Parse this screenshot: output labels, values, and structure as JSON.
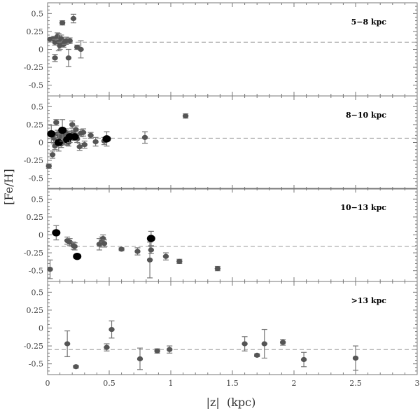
{
  "chart_data": {
    "type": "scatter",
    "xlabel": "|z|  (kpc)",
    "ylabel": "[Fe/H]",
    "xlim": [
      0,
      3
    ],
    "ylim": [
      -0.65,
      0.65
    ],
    "xticks": [
      0,
      0.5,
      1,
      1.5,
      2,
      2.5,
      3
    ],
    "xtick_labels": [
      "0",
      "0.5",
      "1",
      "1.5",
      "2",
      "2.5",
      "3"
    ],
    "yticks": [
      0.5,
      0.25,
      0,
      -0.25,
      -0.5
    ],
    "ytick_labels": [
      "0.5",
      "0.25",
      "0",
      "-0.25",
      "-0.5"
    ],
    "grid": false,
    "marker_colors": {
      "small": "#555555",
      "large": "#000000"
    },
    "panels": [
      {
        "label": "5−8 kpc",
        "ref_line": 0.1,
        "points": [
          {
            "x": 0.02,
            "y": 0.14,
            "err": 0.0,
            "size": "small"
          },
          {
            "x": 0.05,
            "y": 0.15,
            "err": 0.03,
            "size": "small"
          },
          {
            "x": 0.06,
            "y": 0.1,
            "err": 0.04,
            "size": "small"
          },
          {
            "x": 0.06,
            "y": -0.12,
            "err": 0.05,
            "size": "small"
          },
          {
            "x": 0.08,
            "y": 0.18,
            "err": 0.05,
            "size": "small"
          },
          {
            "x": 0.09,
            "y": 0.1,
            "err": 0.12,
            "size": "small"
          },
          {
            "x": 0.1,
            "y": 0.05,
            "err": 0.05,
            "size": "small"
          },
          {
            "x": 0.11,
            "y": 0.15,
            "err": 0.05,
            "size": "small"
          },
          {
            "x": 0.12,
            "y": 0.37,
            "err": 0.03,
            "size": "small"
          },
          {
            "x": 0.13,
            "y": 0.07,
            "err": 0.04,
            "size": "small"
          },
          {
            "x": 0.14,
            "y": 0.1,
            "err": 0.03,
            "size": "small"
          },
          {
            "x": 0.15,
            "y": 0.12,
            "err": 0.05,
            "size": "small"
          },
          {
            "x": 0.17,
            "y": -0.12,
            "err": 0.12,
            "size": "small"
          },
          {
            "x": 0.18,
            "y": 0.12,
            "err": 0.04,
            "size": "small"
          },
          {
            "x": 0.21,
            "y": 0.43,
            "err": 0.06,
            "size": "small"
          },
          {
            "x": 0.24,
            "y": 0.03,
            "err": 0.03,
            "size": "small"
          },
          {
            "x": 0.27,
            "y": 0.0,
            "err": 0.12,
            "size": "small"
          }
        ]
      },
      {
        "label": "8−10 kpc",
        "ref_line": 0.06,
        "points": [
          {
            "x": 0.01,
            "y": -0.33,
            "err": 0.03,
            "size": "small"
          },
          {
            "x": 0.03,
            "y": 0.12,
            "err": 0.12,
            "size": "large"
          },
          {
            "x": 0.04,
            "y": -0.17,
            "err": 0.05,
            "size": "small"
          },
          {
            "x": 0.05,
            "y": 0.06,
            "err": 0.08,
            "size": "small"
          },
          {
            "x": 0.06,
            "y": -0.05,
            "err": 0.05,
            "size": "small"
          },
          {
            "x": 0.07,
            "y": 0.28,
            "err": 0.04,
            "size": "small"
          },
          {
            "x": 0.08,
            "y": 0.12,
            "err": 0.05,
            "size": "small"
          },
          {
            "x": 0.09,
            "y": 0.0,
            "err": 0.12,
            "size": "large"
          },
          {
            "x": 0.1,
            "y": 0.08,
            "err": 0.05,
            "size": "small"
          },
          {
            "x": 0.11,
            "y": -0.02,
            "err": 0.05,
            "size": "small"
          },
          {
            "x": 0.12,
            "y": 0.17,
            "err": 0.15,
            "size": "large"
          },
          {
            "x": 0.13,
            "y": 0.1,
            "err": 0.05,
            "size": "small"
          },
          {
            "x": 0.14,
            "y": 0.02,
            "err": 0.05,
            "size": "small"
          },
          {
            "x": 0.15,
            "y": 0.14,
            "err": 0.05,
            "size": "small"
          },
          {
            "x": 0.16,
            "y": 0.04,
            "err": 0.08,
            "size": "large"
          },
          {
            "x": 0.17,
            "y": 0.0,
            "err": 0.05,
            "size": "small"
          },
          {
            "x": 0.18,
            "y": 0.08,
            "err": 0.08,
            "size": "large"
          },
          {
            "x": 0.19,
            "y": 0.1,
            "err": 0.05,
            "size": "small"
          },
          {
            "x": 0.2,
            "y": 0.25,
            "err": 0.05,
            "size": "small"
          },
          {
            "x": 0.21,
            "y": 0.12,
            "err": 0.05,
            "size": "small"
          },
          {
            "x": 0.22,
            "y": 0.08,
            "err": 0.05,
            "size": "large"
          },
          {
            "x": 0.23,
            "y": 0.18,
            "err": 0.05,
            "size": "small"
          },
          {
            "x": 0.24,
            "y": 0.05,
            "err": 0.05,
            "size": "small"
          },
          {
            "x": 0.26,
            "y": -0.06,
            "err": 0.05,
            "size": "small"
          },
          {
            "x": 0.27,
            "y": 0.13,
            "err": 0.05,
            "size": "small"
          },
          {
            "x": 0.29,
            "y": 0.14,
            "err": 0.05,
            "size": "small"
          },
          {
            "x": 0.3,
            "y": -0.03,
            "err": 0.05,
            "size": "small"
          },
          {
            "x": 0.35,
            "y": 0.1,
            "err": 0.04,
            "size": "small"
          },
          {
            "x": 0.39,
            "y": 0.01,
            "err": 0.06,
            "size": "small"
          },
          {
            "x": 0.46,
            "y": 0.02,
            "err": 0.05,
            "size": "small"
          },
          {
            "x": 0.48,
            "y": 0.05,
            "err": 0.1,
            "size": "large"
          },
          {
            "x": 0.79,
            "y": 0.07,
            "err": 0.08,
            "size": "small"
          },
          {
            "x": 1.12,
            "y": 0.37,
            "err": 0.03,
            "size": "small"
          }
        ]
      },
      {
        "label": "10−13 kpc",
        "ref_line": -0.16,
        "points": [
          {
            "x": 0.02,
            "y": -0.48,
            "err": 0.13,
            "size": "small"
          },
          {
            "x": 0.07,
            "y": 0.03,
            "err": 0.1,
            "size": "large"
          },
          {
            "x": 0.16,
            "y": -0.08,
            "err": 0.05,
            "size": "small"
          },
          {
            "x": 0.18,
            "y": -0.1,
            "err": 0.05,
            "size": "small"
          },
          {
            "x": 0.21,
            "y": -0.15,
            "err": 0.05,
            "size": "small"
          },
          {
            "x": 0.22,
            "y": -0.16,
            "err": 0.05,
            "size": "small"
          },
          {
            "x": 0.24,
            "y": -0.3,
            "err": 0.02,
            "size": "large"
          },
          {
            "x": 0.42,
            "y": -0.13,
            "err": 0.08,
            "size": "small"
          },
          {
            "x": 0.44,
            "y": -0.1,
            "err": 0.07,
            "size": "small"
          },
          {
            "x": 0.45,
            "y": -0.05,
            "err": 0.05,
            "size": "small"
          },
          {
            "x": 0.46,
            "y": -0.12,
            "err": 0.05,
            "size": "small"
          },
          {
            "x": 0.6,
            "y": -0.2,
            "err": 0.02,
            "size": "small"
          },
          {
            "x": 0.73,
            "y": -0.23,
            "err": 0.05,
            "size": "small"
          },
          {
            "x": 0.83,
            "y": -0.35,
            "err": 0.25,
            "size": "small"
          },
          {
            "x": 0.84,
            "y": -0.21,
            "err": 0.05,
            "size": "small"
          },
          {
            "x": 0.84,
            "y": -0.05,
            "err": 0.1,
            "size": "large"
          },
          {
            "x": 0.96,
            "y": -0.3,
            "err": 0.05,
            "size": "small"
          },
          {
            "x": 1.07,
            "y": -0.37,
            "err": 0.03,
            "size": "small"
          },
          {
            "x": 1.38,
            "y": -0.47,
            "err": 0.03,
            "size": "small"
          }
        ]
      },
      {
        "label": ">13 kpc",
        "ref_line": -0.3,
        "points": [
          {
            "x": 0.16,
            "y": -0.22,
            "err": 0.18,
            "size": "small"
          },
          {
            "x": 0.23,
            "y": -0.54,
            "err": 0.02,
            "size": "small"
          },
          {
            "x": 0.48,
            "y": -0.27,
            "err": 0.05,
            "size": "small"
          },
          {
            "x": 0.52,
            "y": -0.02,
            "err": 0.12,
            "size": "small"
          },
          {
            "x": 0.75,
            "y": -0.43,
            "err": 0.15,
            "size": "small"
          },
          {
            "x": 0.89,
            "y": -0.32,
            "err": 0.03,
            "size": "small"
          },
          {
            "x": 0.99,
            "y": -0.3,
            "err": 0.05,
            "size": "small"
          },
          {
            "x": 1.6,
            "y": -0.22,
            "err": 0.1,
            "size": "small"
          },
          {
            "x": 1.7,
            "y": -0.38,
            "err": 0.02,
            "size": "small"
          },
          {
            "x": 1.76,
            "y": -0.22,
            "err": 0.2,
            "size": "small"
          },
          {
            "x": 1.91,
            "y": -0.2,
            "err": 0.04,
            "size": "small"
          },
          {
            "x": 2.08,
            "y": -0.44,
            "err": 0.1,
            "size": "small"
          },
          {
            "x": 2.5,
            "y": -0.42,
            "err": 0.17,
            "size": "small"
          }
        ]
      }
    ]
  }
}
